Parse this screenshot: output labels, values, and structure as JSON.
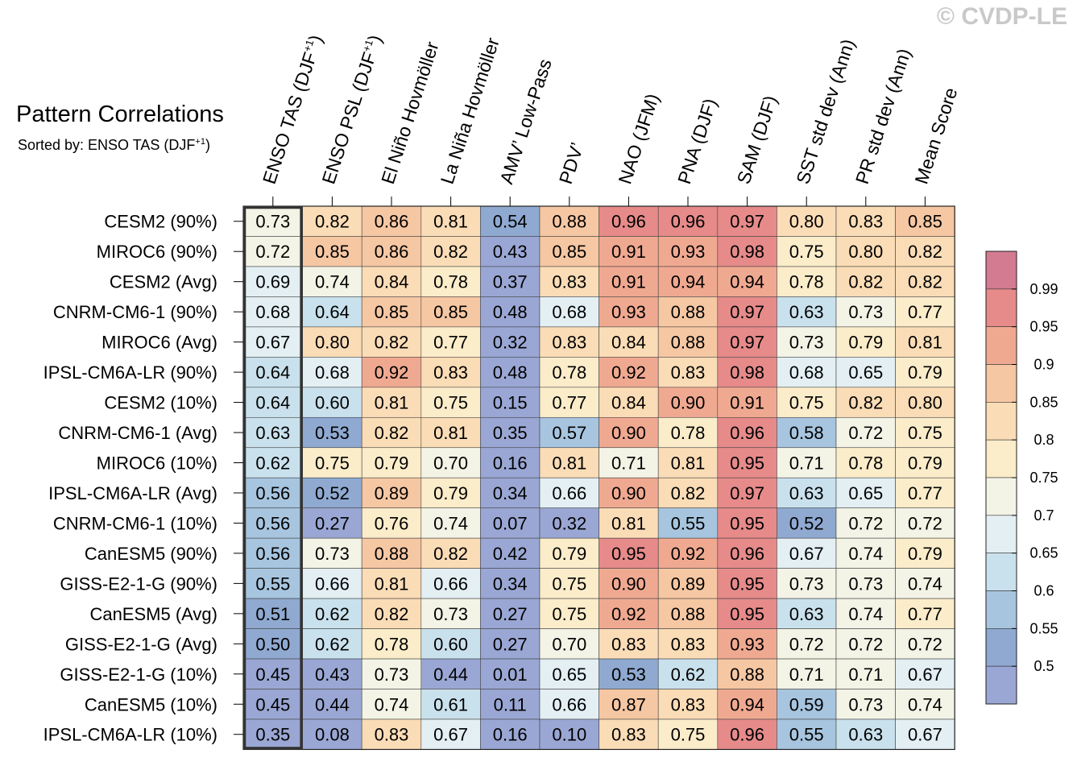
{
  "watermark": "© CVDP-LE",
  "chart_data": {
    "type": "heatmap",
    "title": "Pattern Correlations",
    "subtitle_prefix": "Sorted by: ENSO TAS (DJF",
    "subtitle_sup": "+1",
    "subtitle_suffix": ")",
    "highlighted_column": 0,
    "columns": [
      {
        "label": "ENSO TAS (DJF",
        "sup": "+1",
        "suffix": ")"
      },
      {
        "label": "ENSO PSL (DJF",
        "sup": "+1",
        "suffix": ")"
      },
      {
        "label": "El Niño Hovmöller",
        "sup": "",
        "suffix": ""
      },
      {
        "label": "La Niña Hovmöller",
        "sup": "",
        "suffix": ""
      },
      {
        "label": "AMV’ Low-Pass",
        "sup": "",
        "suffix": ""
      },
      {
        "label": "PDV’",
        "sup": "",
        "suffix": ""
      },
      {
        "label": "NAO (JFM)",
        "sup": "",
        "suffix": ""
      },
      {
        "label": "PNA (DJF)",
        "sup": "",
        "suffix": ""
      },
      {
        "label": "SAM (DJF)",
        "sup": "",
        "suffix": ""
      },
      {
        "label": "SST std dev (Ann)",
        "sup": "",
        "suffix": ""
      },
      {
        "label": "PR std dev (Ann)",
        "sup": "",
        "suffix": ""
      },
      {
        "label": "Mean Score",
        "sup": "",
        "suffix": ""
      }
    ],
    "rows": [
      "CESM2 (90%)",
      "MIROC6 (90%)",
      "CESM2 (Avg)",
      "CNRM-CM6-1 (90%)",
      "MIROC6 (Avg)",
      "IPSL-CM6A-LR (90%)",
      "CESM2 (10%)",
      "CNRM-CM6-1 (Avg)",
      "MIROC6 (10%)",
      "IPSL-CM6A-LR (Avg)",
      "CNRM-CM6-1 (10%)",
      "CanESM5 (90%)",
      "GISS-E2-1-G (90%)",
      "CanESM5 (Avg)",
      "GISS-E2-1-G (Avg)",
      "GISS-E2-1-G (10%)",
      "CanESM5 (10%)",
      "IPSL-CM6A-LR (10%)"
    ],
    "values": [
      [
        "0.73",
        "0.82",
        "0.86",
        "0.81",
        "0.54",
        "0.88",
        "0.96",
        "0.96",
        "0.97",
        "0.80",
        "0.83",
        "0.85"
      ],
      [
        "0.72",
        "0.85",
        "0.86",
        "0.82",
        "0.43",
        "0.85",
        "0.91",
        "0.93",
        "0.98",
        "0.75",
        "0.80",
        "0.82"
      ],
      [
        "0.69",
        "0.74",
        "0.84",
        "0.78",
        "0.37",
        "0.83",
        "0.91",
        "0.94",
        "0.94",
        "0.78",
        "0.82",
        "0.82"
      ],
      [
        "0.68",
        "0.64",
        "0.85",
        "0.85",
        "0.48",
        "0.68",
        "0.93",
        "0.88",
        "0.97",
        "0.63",
        "0.73",
        "0.77"
      ],
      [
        "0.67",
        "0.80",
        "0.82",
        "0.77",
        "0.32",
        "0.83",
        "0.84",
        "0.88",
        "0.97",
        "0.73",
        "0.79",
        "0.81"
      ],
      [
        "0.64",
        "0.68",
        "0.92",
        "0.83",
        "0.48",
        "0.78",
        "0.92",
        "0.83",
        "0.98",
        "0.68",
        "0.65",
        "0.79"
      ],
      [
        "0.64",
        "0.60",
        "0.81",
        "0.75",
        "0.15",
        "0.77",
        "0.84",
        "0.90",
        "0.91",
        "0.75",
        "0.82",
        "0.80"
      ],
      [
        "0.63",
        "0.53",
        "0.82",
        "0.81",
        "0.35",
        "0.57",
        "0.90",
        "0.78",
        "0.96",
        "0.58",
        "0.72",
        "0.75"
      ],
      [
        "0.62",
        "0.75",
        "0.79",
        "0.70",
        "0.16",
        "0.81",
        "0.71",
        "0.81",
        "0.95",
        "0.71",
        "0.78",
        "0.79"
      ],
      [
        "0.56",
        "0.52",
        "0.89",
        "0.79",
        "0.34",
        "0.66",
        "0.90",
        "0.82",
        "0.97",
        "0.63",
        "0.65",
        "0.77"
      ],
      [
        "0.56",
        "0.27",
        "0.76",
        "0.74",
        "0.07",
        "0.32",
        "0.81",
        "0.55",
        "0.95",
        "0.52",
        "0.72",
        "0.72"
      ],
      [
        "0.56",
        "0.73",
        "0.88",
        "0.82",
        "0.42",
        "0.79",
        "0.95",
        "0.92",
        "0.96",
        "0.67",
        "0.74",
        "0.79"
      ],
      [
        "0.55",
        "0.66",
        "0.81",
        "0.66",
        "0.34",
        "0.75",
        "0.90",
        "0.89",
        "0.95",
        "0.73",
        "0.73",
        "0.74"
      ],
      [
        "0.51",
        "0.62",
        "0.82",
        "0.73",
        "0.27",
        "0.75",
        "0.92",
        "0.88",
        "0.95",
        "0.63",
        "0.74",
        "0.77"
      ],
      [
        "0.50",
        "0.62",
        "0.78",
        "0.60",
        "0.27",
        "0.70",
        "0.83",
        "0.83",
        "0.93",
        "0.72",
        "0.72",
        "0.72"
      ],
      [
        "0.45",
        "0.43",
        "0.73",
        "0.44",
        "0.01",
        "0.65",
        "0.53",
        "0.62",
        "0.88",
        "0.71",
        "0.71",
        "0.67"
      ],
      [
        "0.45",
        "0.44",
        "0.74",
        "0.61",
        "0.11",
        "0.66",
        "0.87",
        "0.83",
        "0.94",
        "0.59",
        "0.73",
        "0.74"
      ],
      [
        "0.35",
        "0.08",
        "0.83",
        "0.67",
        "0.16",
        "0.10",
        "0.83",
        "0.75",
        "0.96",
        "0.55",
        "0.63",
        "0.67"
      ]
    ],
    "colorbar": {
      "ticks": [
        "0.99",
        "0.95",
        "0.9",
        "0.85",
        "0.8",
        "0.75",
        "0.7",
        "0.65",
        "0.6",
        "0.55",
        "0.5"
      ],
      "levels": [
        0.99,
        0.95,
        0.9,
        0.85,
        0.8,
        0.75,
        0.7,
        0.65,
        0.6,
        0.55,
        0.5
      ],
      "colors": [
        "#d27b91",
        "#e68a8a",
        "#f0a991",
        "#f6c7a3",
        "#fadcb6",
        "#fbecca",
        "#f3f3e6",
        "#e3eff3",
        "#c9e1ec",
        "#a7c5df",
        "#8fa9d1",
        "#9aa7d4"
      ]
    }
  }
}
